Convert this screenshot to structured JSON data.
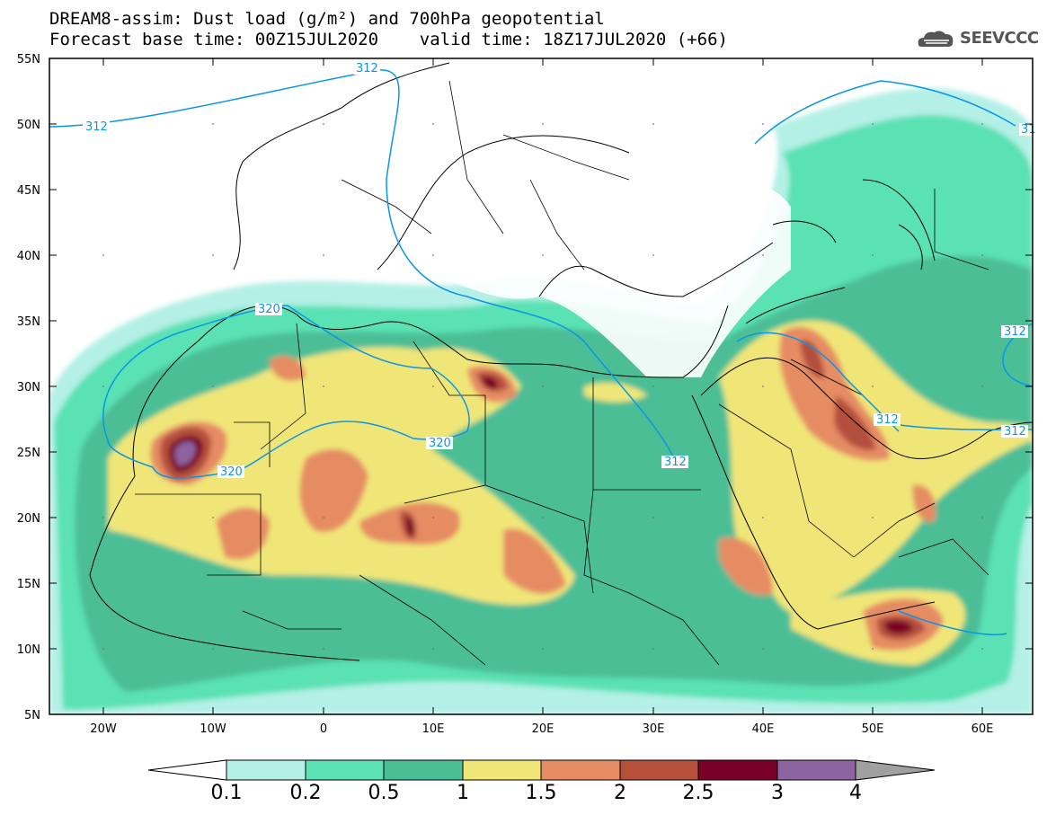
{
  "header": {
    "title_line1": "DREAM8-assim: Dust load (g/m²) and 700hPa geopotential",
    "title_line2": "Forecast base time: 00Z15JUL2020    valid time: 18Z17JUL2020 (+66)"
  },
  "logo": {
    "text": "SEEVCCC",
    "icon": "cloud-icon"
  },
  "map": {
    "lat_labels": [
      "55N",
      "50N",
      "45N",
      "40N",
      "35N",
      "30N",
      "25N",
      "20N",
      "15N",
      "10N",
      "5N"
    ],
    "lon_labels": [
      "20W",
      "10W",
      "0",
      "10E",
      "20E",
      "30E",
      "40E",
      "50E",
      "60E"
    ],
    "contour_labels": [
      "312",
      "312",
      "320",
      "320",
      "320",
      "312",
      "312",
      "312",
      "312",
      "31"
    ]
  },
  "colorbar": {
    "labels": [
      "0.1",
      "0.2",
      "0.5",
      "1",
      "1.5",
      "2",
      "2.5",
      "3",
      "4"
    ],
    "colors": [
      "#ffffff",
      "#b4f0e6",
      "#5ae1b4",
      "#4bbe96",
      "#f0e678",
      "#e68c64",
      "#b4503c",
      "#780028",
      "#8c64a0",
      "#a0a0a0"
    ]
  },
  "palette": {
    "contour": "#0a96e6",
    "border": "#000000"
  }
}
